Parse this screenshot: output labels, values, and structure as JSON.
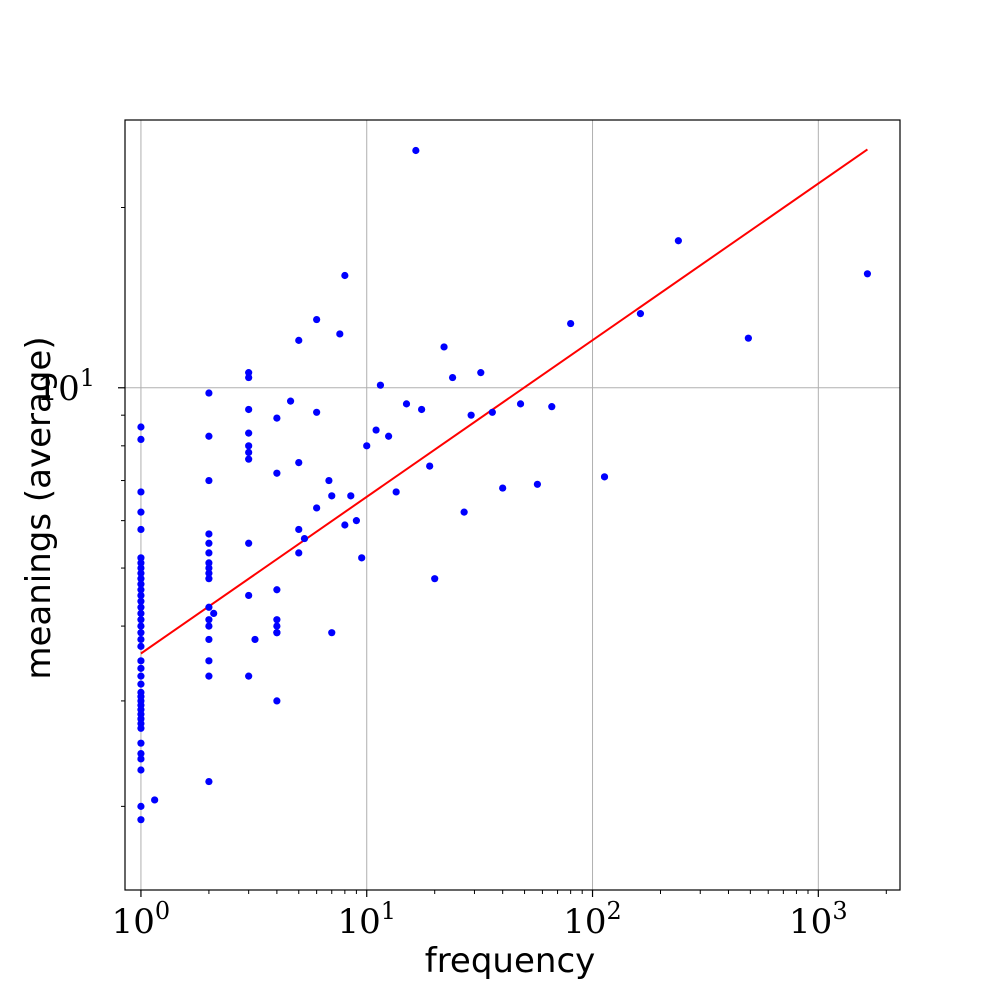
{
  "chart_data": {
    "type": "scatter",
    "title": "",
    "xlabel": "frequency",
    "ylabel": "meanings (average)",
    "xscale": "log",
    "yscale": "log",
    "xlim": [
      0.85,
      2300
    ],
    "ylim": [
      1.45,
      28
    ],
    "grid": true,
    "colors": {
      "points": "#0000ff",
      "fit_line": "#ff0000",
      "grid": "#b0b0b0",
      "frame": "#000000"
    },
    "x_ticks": [
      {
        "value": 1,
        "base": "10",
        "exp": "0"
      },
      {
        "value": 10,
        "base": "10",
        "exp": "1"
      },
      {
        "value": 100,
        "base": "10",
        "exp": "2"
      },
      {
        "value": 1000,
        "base": "10",
        "exp": "3"
      }
    ],
    "y_ticks": [
      {
        "value": 10,
        "base": "10",
        "exp": "1"
      }
    ],
    "y_minor_ticks": [
      2,
      3,
      4,
      5,
      6,
      7,
      8,
      9,
      20
    ],
    "fit_line": {
      "x": [
        1,
        1650
      ],
      "y": [
        3.6,
        25
      ]
    },
    "series": [
      {
        "x": [
          1,
          1,
          1,
          1,
          1,
          1,
          1,
          1,
          1,
          1,
          1,
          1,
          1,
          1,
          1,
          1,
          1,
          1,
          1,
          1,
          1,
          1,
          1,
          1,
          1,
          1,
          1,
          1,
          1,
          1,
          1,
          1,
          1,
          1,
          1,
          1,
          1,
          1,
          1,
          1,
          1.15,
          2,
          2,
          2,
          2,
          2,
          2,
          2,
          2,
          2,
          2,
          2,
          2,
          2,
          2,
          2,
          2,
          2,
          2.1,
          3,
          3,
          3,
          3,
          3,
          3,
          3,
          3,
          3,
          3,
          3.2,
          4,
          4,
          4,
          4,
          4,
          4,
          4,
          4,
          4.6,
          5,
          5,
          5,
          5,
          5.3,
          6,
          6,
          6,
          6.8,
          7,
          7,
          7.6,
          8,
          8,
          8.5,
          9,
          9.5,
          10,
          11,
          11.5,
          12.5,
          13.5,
          15,
          16.5,
          17.5,
          19,
          20,
          22,
          24,
          27,
          29,
          32,
          36,
          40,
          48,
          57,
          66,
          80,
          113,
          163,
          240,
          490,
          1650
        ],
        "y": [
          8.6,
          8.2,
          6.7,
          6.2,
          5.8,
          5.2,
          5.1,
          5.0,
          4.9,
          4.8,
          4.7,
          4.6,
          4.5,
          4.4,
          4.3,
          4.2,
          4.1,
          4.0,
          3.9,
          3.8,
          3.7,
          3.5,
          3.4,
          3.3,
          3.2,
          3.1,
          3.05,
          3.0,
          2.95,
          2.9,
          2.85,
          2.8,
          2.75,
          2.7,
          2.55,
          2.45,
          2.4,
          2.3,
          2.0,
          1.9,
          2.05,
          9.8,
          8.3,
          7.0,
          5.7,
          5.5,
          5.3,
          5.1,
          5.0,
          4.9,
          4.8,
          4.3,
          4.1,
          4.0,
          3.8,
          3.5,
          3.3,
          2.2,
          4.2,
          10.6,
          10.4,
          9.2,
          8.4,
          8.0,
          7.8,
          7.6,
          5.5,
          4.5,
          3.3,
          3.8,
          8.9,
          7.2,
          4.6,
          4.0,
          3.9,
          3.0,
          4.1,
          3.9,
          9.5,
          12.0,
          7.5,
          5.3,
          5.8,
          5.6,
          9.1,
          6.3,
          13.0,
          7.0,
          6.6,
          3.9,
          12.3,
          5.9,
          15.4,
          6.6,
          6.0,
          5.2,
          8.0,
          8.5,
          10.1,
          8.3,
          6.7,
          9.4,
          24.9,
          9.2,
          7.4,
          4.8,
          11.7,
          10.4,
          6.2,
          9.0,
          10.6,
          9.1,
          6.8,
          9.4,
          6.9,
          9.3,
          12.8,
          7.1,
          13.3,
          17.6,
          12.1,
          15.5
        ]
      }
    ]
  }
}
